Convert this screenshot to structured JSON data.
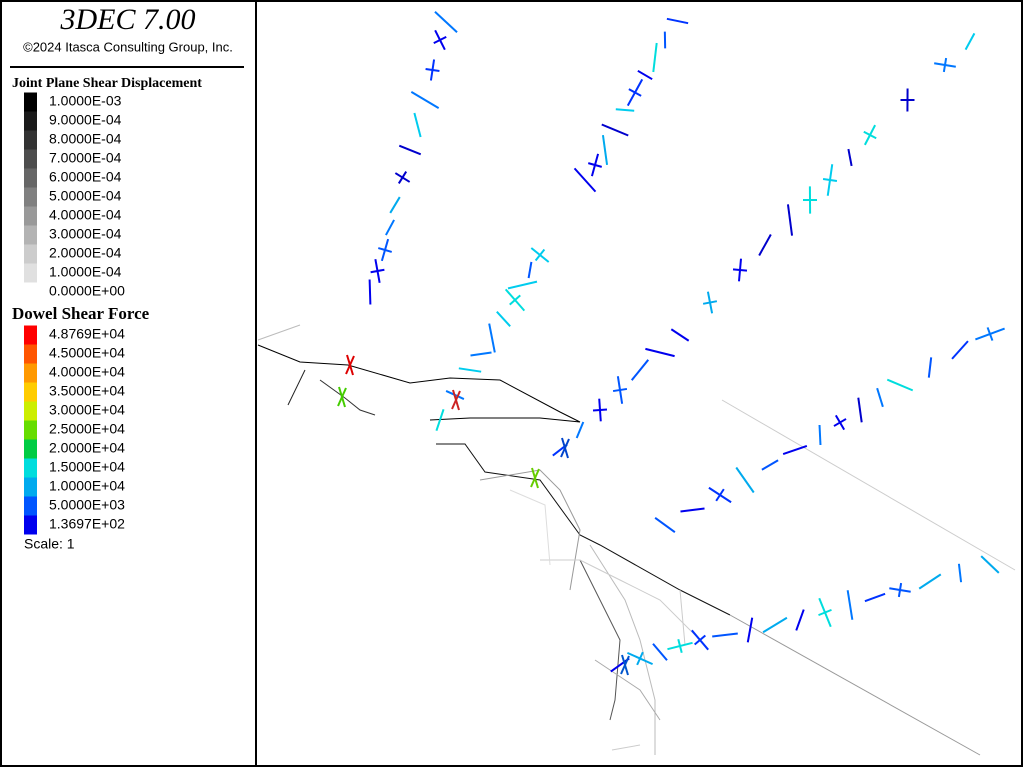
{
  "header": {
    "title": "3DEC 7.00",
    "copyright": "©2024 Itasca Consulting Group, Inc."
  },
  "legends": [
    {
      "title": "Joint Plane Shear Displacement",
      "items": [
        {
          "label": "1.0000E-03",
          "color": "#000000"
        },
        {
          "label": "9.0000E-04",
          "color": "#1a1a1a"
        },
        {
          "label": "8.0000E-04",
          "color": "#333333"
        },
        {
          "label": "7.0000E-04",
          "color": "#4d4d4d"
        },
        {
          "label": "6.0000E-04",
          "color": "#666666"
        },
        {
          "label": "5.0000E-04",
          "color": "#808080"
        },
        {
          "label": "4.0000E-04",
          "color": "#999999"
        },
        {
          "label": "3.0000E-04",
          "color": "#b3b3b3"
        },
        {
          "label": "2.0000E-04",
          "color": "#cccccc"
        },
        {
          "label": "1.0000E-04",
          "color": "#e0e0e0"
        },
        {
          "label": "0.0000E+00"
        }
      ]
    },
    {
      "title": "Dowel Shear Force",
      "items": [
        {
          "label": "4.8769E+04",
          "color": "#ff0000"
        },
        {
          "label": "4.5000E+04",
          "color": "#ff5500"
        },
        {
          "label": "4.0000E+04",
          "color": "#ff9900"
        },
        {
          "label": "3.5000E+04",
          "color": "#ffcc00"
        },
        {
          "label": "3.0000E+04",
          "color": "#ccee00"
        },
        {
          "label": "2.5000E+04",
          "color": "#66dd00"
        },
        {
          "label": "2.0000E+04",
          "color": "#00cc44"
        },
        {
          "label": "1.5000E+04",
          "color": "#00dddd"
        },
        {
          "label": "1.0000E+04",
          "color": "#00aaee"
        },
        {
          "label": "5.0000E+03",
          "color": "#0055ff"
        },
        {
          "label": "1.3697E+02",
          "color": "#0000ee"
        }
      ]
    }
  ],
  "scale": "Scale: 1"
}
